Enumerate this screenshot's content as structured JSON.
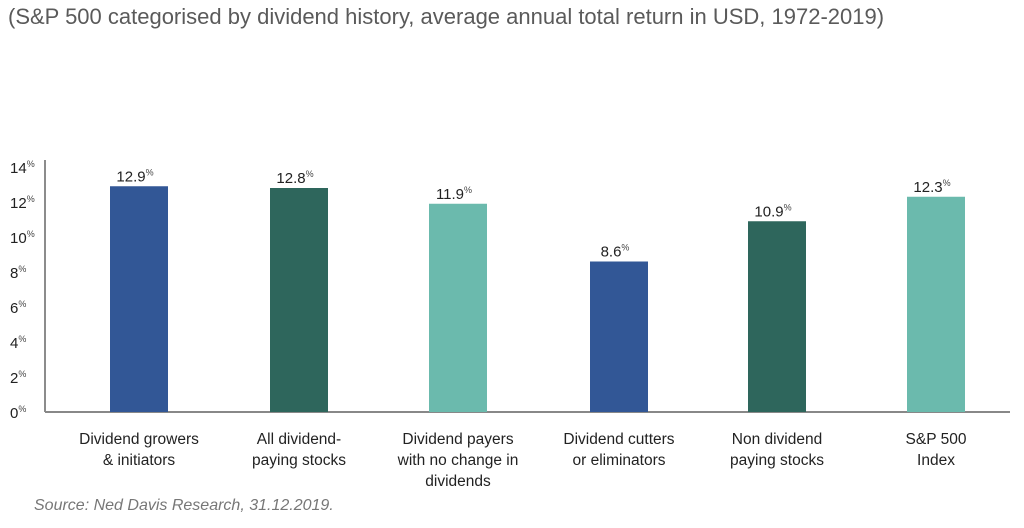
{
  "chart_data": {
    "type": "bar",
    "title": "(S&P 500 categorised by dividend history, average annual total return in USD, 1972-2019)",
    "source": "Source: Ned Davis Research, 31.12.2019.",
    "xlabel": "",
    "ylabel": "",
    "ylim": [
      0,
      14
    ],
    "yticks": [
      0,
      2,
      4,
      6,
      8,
      10,
      12,
      14
    ],
    "tick_suffix": "%",
    "grid": false,
    "categories": [
      [
        "Dividend growers",
        "& initiators"
      ],
      [
        "All dividend-",
        "paying stocks"
      ],
      [
        "Dividend payers",
        "with no change in",
        "dividends"
      ],
      [
        "Dividend cutters",
        "or eliminators"
      ],
      [
        "Non dividend",
        "paying stocks"
      ],
      [
        "S&P 500",
        "Index"
      ]
    ],
    "values": [
      12.9,
      12.8,
      11.9,
      8.6,
      10.9,
      12.3
    ],
    "labels": [
      "12.9",
      "12.8",
      "11.9",
      "8.6",
      "10.9",
      "12.3"
    ],
    "colors": [
      "#325796",
      "#2e665c",
      "#6bbaad",
      "#325796",
      "#2e665c",
      "#6bbaad"
    ]
  }
}
